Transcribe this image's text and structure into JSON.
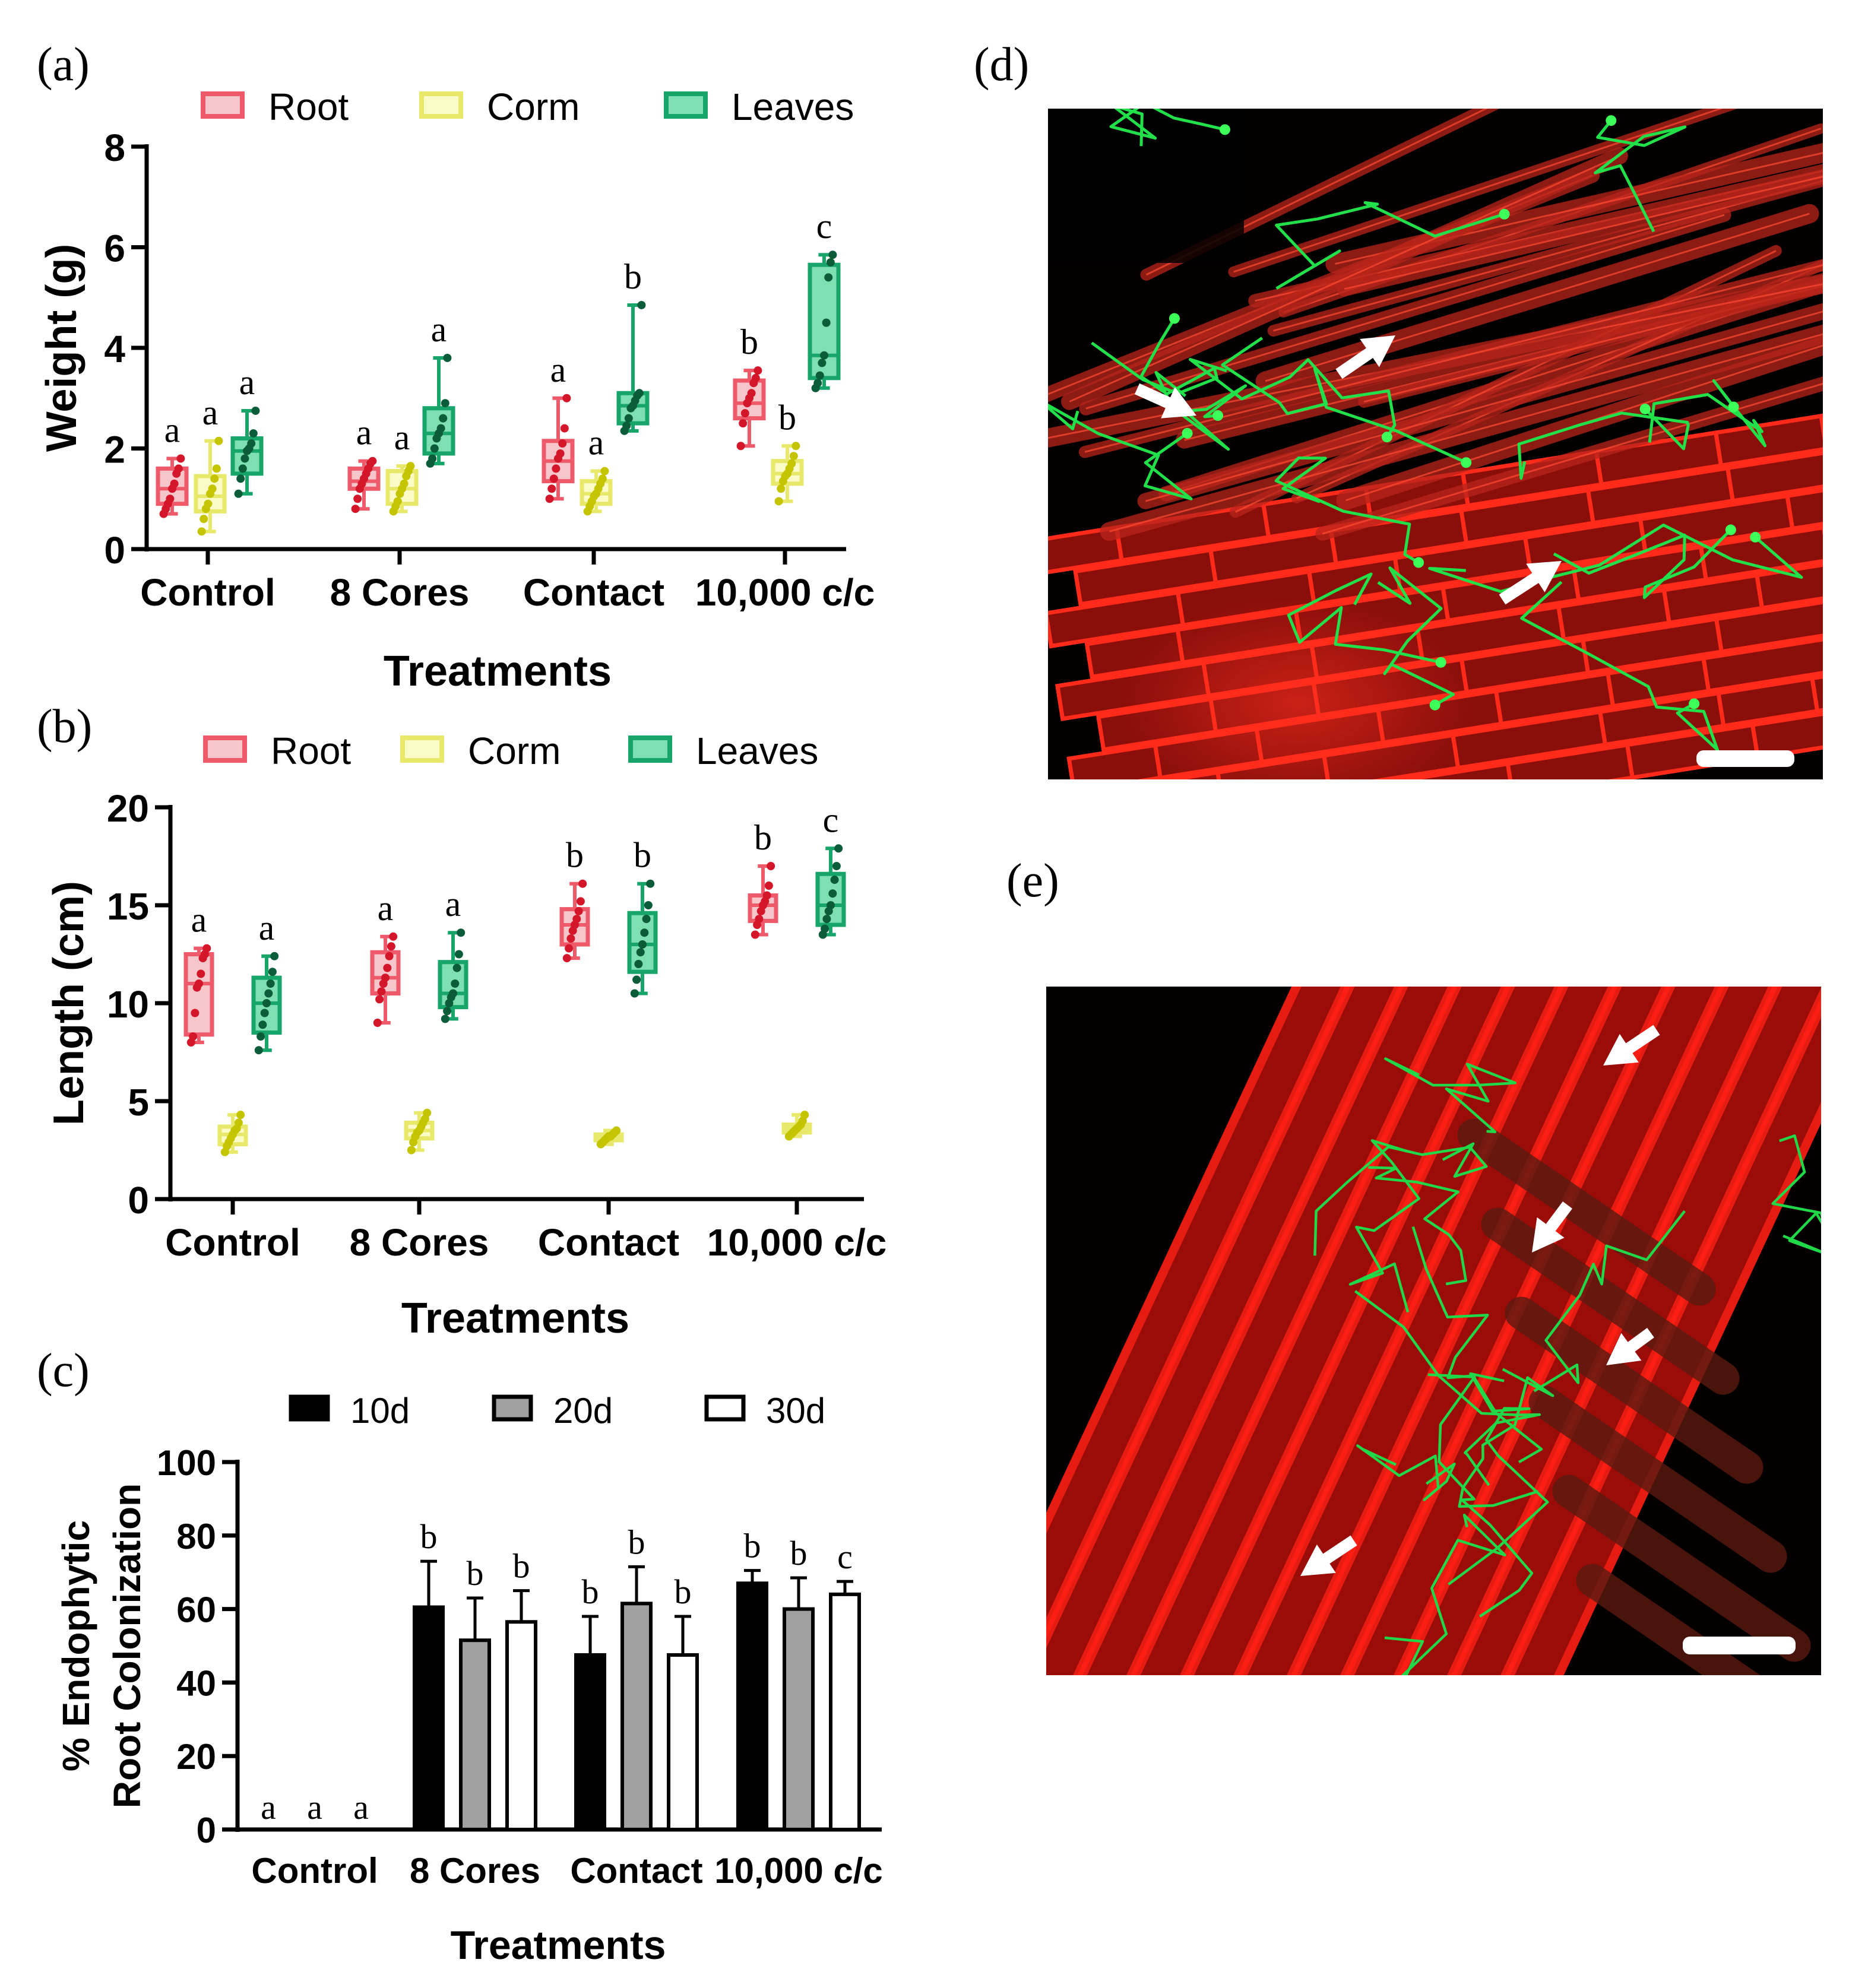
{
  "panels": {
    "a": "(a)",
    "b": "(b)",
    "c": "(c)",
    "d": "(d)",
    "e": "(e)"
  },
  "colors": {
    "root_edge": "#ee5a6a",
    "root_fill": "#f7c6cb",
    "root_dot": "#d4162a",
    "corm_edge": "#e8e86a",
    "corm_fill": "#fbfbc8",
    "corm_dot": "#c4c400",
    "leaves_edge": "#17a56a",
    "leaves_fill": "#7ee0b0",
    "leaves_dot": "#0b5c39",
    "bar_10d": "#000000",
    "bar_20d": "#a0a0a0",
    "bar_30d": "#ffffff"
  },
  "chart_data": [
    {
      "id": "a",
      "type": "box",
      "ylabel": "Weight (g)",
      "xlabel": "Treatments",
      "categories": [
        "Control",
        "8 Cores",
        "Contact",
        "10,000 c/c"
      ],
      "yticks": [
        "0",
        "2",
        "4",
        "6",
        "8"
      ],
      "ylim": [
        0,
        8
      ],
      "legend": [
        "Root",
        "Corm",
        "Leaves"
      ],
      "series": [
        {
          "name": "Root",
          "boxes": [
            {
              "min": 0.7,
              "q1": 0.9,
              "median": 1.2,
              "q3": 1.6,
              "max": 1.8,
              "sig": "a",
              "points": [
                0.7,
                0.8,
                0.9,
                1.0,
                1.2,
                1.3,
                1.5,
                1.6,
                1.8
              ]
            },
            {
              "min": 0.8,
              "q1": 1.2,
              "median": 1.35,
              "q3": 1.6,
              "max": 1.75,
              "sig": "a",
              "points": [
                0.8,
                1.0,
                1.2,
                1.3,
                1.4,
                1.5,
                1.6,
                1.7,
                1.75
              ]
            },
            {
              "min": 1.0,
              "q1": 1.35,
              "median": 1.75,
              "q3": 2.15,
              "max": 3.0,
              "sig": "a",
              "points": [
                1.0,
                1.2,
                1.4,
                1.6,
                1.8,
                1.9,
                2.1,
                2.4,
                3.0
              ]
            },
            {
              "min": 2.05,
              "q1": 2.6,
              "median": 2.9,
              "q3": 3.35,
              "max": 3.55,
              "sig": "b",
              "points": [
                2.05,
                2.5,
                2.7,
                2.9,
                3.0,
                3.1,
                3.3,
                3.4,
                3.55
              ]
            }
          ]
        },
        {
          "name": "Corm",
          "boxes": [
            {
              "min": 0.35,
              "q1": 0.75,
              "median": 1.05,
              "q3": 1.45,
              "max": 2.15,
              "sig": "a",
              "points": [
                0.35,
                0.6,
                0.8,
                0.9,
                1.1,
                1.2,
                1.4,
                1.6,
                2.15
              ]
            },
            {
              "min": 0.75,
              "q1": 0.9,
              "median": 1.2,
              "q3": 1.55,
              "max": 1.65,
              "sig": "a",
              "points": [
                0.75,
                0.85,
                0.95,
                1.1,
                1.2,
                1.3,
                1.45,
                1.55,
                1.65
              ]
            },
            {
              "min": 0.75,
              "q1": 0.9,
              "median": 1.1,
              "q3": 1.35,
              "max": 1.55,
              "sig": "a",
              "points": [
                0.75,
                0.85,
                0.95,
                1.05,
                1.1,
                1.2,
                1.3,
                1.4,
                1.55
              ]
            },
            {
              "min": 0.95,
              "q1": 1.3,
              "median": 1.5,
              "q3": 1.75,
              "max": 2.05,
              "sig": "b",
              "points": [
                0.95,
                1.2,
                1.35,
                1.45,
                1.5,
                1.6,
                1.7,
                1.85,
                2.05
              ]
            }
          ]
        },
        {
          "name": "Leaves",
          "boxes": [
            {
              "min": 1.1,
              "q1": 1.5,
              "median": 1.95,
              "q3": 2.2,
              "max": 2.75,
              "sig": "a",
              "points": [
                1.1,
                1.4,
                1.6,
                1.8,
                1.95,
                2.0,
                2.1,
                2.3,
                2.75
              ]
            },
            {
              "min": 1.7,
              "q1": 1.9,
              "median": 2.3,
              "q3": 2.8,
              "max": 3.8,
              "sig": "a",
              "points": [
                1.7,
                1.8,
                2.0,
                2.2,
                2.3,
                2.4,
                2.6,
                2.9,
                3.8
              ]
            },
            {
              "min": 2.35,
              "q1": 2.5,
              "median": 2.85,
              "q3": 3.1,
              "max": 4.85,
              "sig": "b",
              "points": [
                2.35,
                2.45,
                2.6,
                2.8,
                2.85,
                2.95,
                3.05,
                3.1,
                4.85
              ]
            },
            {
              "min": 3.2,
              "q1": 3.4,
              "median": 3.85,
              "q3": 5.65,
              "max": 5.85,
              "sig": "c",
              "points": [
                3.2,
                3.3,
                3.45,
                3.7,
                3.85,
                4.5,
                5.4,
                5.7,
                5.85
              ]
            }
          ]
        }
      ]
    },
    {
      "id": "b",
      "type": "box",
      "ylabel": "Length (cm)",
      "xlabel": "Treatments",
      "categories": [
        "Control",
        "8 Cores",
        "Contact",
        "10,000 c/c"
      ],
      "yticks": [
        "0",
        "5",
        "10",
        "15",
        "20"
      ],
      "ylim": [
        0,
        20
      ],
      "legend": [
        "Root",
        "Corm",
        "Leaves"
      ],
      "series": [
        {
          "name": "Root",
          "boxes": [
            {
              "min": 8.0,
              "q1": 8.4,
              "median": 11.0,
              "q3": 12.5,
              "max": 12.8,
              "sig": "a",
              "points": [
                8.0,
                8.3,
                9.5,
                10.8,
                11.0,
                11.5,
                12.3,
                12.5,
                12.8
              ]
            },
            {
              "min": 9.0,
              "q1": 10.5,
              "median": 11.3,
              "q3": 12.6,
              "max": 13.4,
              "sig": "a",
              "points": [
                9.0,
                10.2,
                10.6,
                11.0,
                11.3,
                11.8,
                12.4,
                12.9,
                13.4
              ]
            },
            {
              "min": 12.3,
              "q1": 13.0,
              "median": 14.0,
              "q3": 14.8,
              "max": 16.1,
              "sig": "b",
              "points": [
                12.3,
                12.8,
                13.3,
                13.7,
                14.0,
                14.3,
                14.7,
                15.2,
                16.1
              ]
            },
            {
              "min": 13.5,
              "q1": 14.2,
              "median": 15.0,
              "q3": 15.5,
              "max": 17.0,
              "sig": "b",
              "points": [
                13.5,
                14.0,
                14.3,
                14.7,
                15.0,
                15.2,
                15.5,
                16.0,
                17.0
              ]
            }
          ]
        },
        {
          "name": "Corm",
          "boxes": [
            {
              "min": 2.4,
              "q1": 2.8,
              "median": 3.3,
              "q3": 3.7,
              "max": 4.3,
              "sig": "",
              "points": [
                2.4,
                2.7,
                2.9,
                3.1,
                3.3,
                3.5,
                3.6,
                3.9,
                4.3
              ]
            },
            {
              "min": 2.5,
              "q1": 3.1,
              "median": 3.5,
              "q3": 3.9,
              "max": 4.4,
              "sig": "",
              "points": [
                2.5,
                2.9,
                3.2,
                3.4,
                3.5,
                3.7,
                3.9,
                4.1,
                4.4
              ]
            },
            {
              "min": 2.8,
              "q1": 3.0,
              "median": 3.2,
              "q3": 3.3,
              "max": 3.5,
              "sig": "",
              "points": [
                2.8,
                2.9,
                3.0,
                3.1,
                3.2,
                3.2,
                3.3,
                3.4,
                3.5
              ]
            },
            {
              "min": 3.2,
              "q1": 3.4,
              "median": 3.6,
              "q3": 3.8,
              "max": 4.3,
              "sig": "",
              "points": [
                3.2,
                3.3,
                3.4,
                3.5,
                3.6,
                3.7,
                3.8,
                4.0,
                4.3
              ]
            }
          ]
        },
        {
          "name": "Leaves",
          "boxes": [
            {
              "min": 7.6,
              "q1": 8.5,
              "median": 10.0,
              "q3": 11.3,
              "max": 12.4,
              "sig": "a",
              "points": [
                7.6,
                8.3,
                8.9,
                9.5,
                10.0,
                10.5,
                11.0,
                11.6,
                12.4
              ]
            },
            {
              "min": 9.2,
              "q1": 9.8,
              "median": 10.5,
              "q3": 12.1,
              "max": 13.6,
              "sig": "a",
              "points": [
                9.2,
                9.6,
                10.0,
                10.3,
                10.5,
                11.0,
                11.8,
                12.5,
                13.6
              ]
            },
            {
              "min": 10.5,
              "q1": 11.6,
              "median": 13.0,
              "q3": 14.6,
              "max": 16.1,
              "sig": "b",
              "points": [
                10.5,
                11.2,
                12.0,
                12.6,
                13.0,
                13.6,
                14.3,
                15.0,
                16.1
              ]
            },
            {
              "min": 13.5,
              "q1": 14.0,
              "median": 15.0,
              "q3": 16.6,
              "max": 17.9,
              "sig": "c",
              "points": [
                13.5,
                13.8,
                14.3,
                14.7,
                15.0,
                15.6,
                16.3,
                17.0,
                17.9
              ]
            }
          ]
        }
      ]
    },
    {
      "id": "c",
      "type": "bar",
      "ylabel": "% Endophytic Root Colonization",
      "xlabel": "Treatments",
      "categories": [
        "Control",
        "8 Cores",
        "Contact",
        "10,000 c/c"
      ],
      "yticks": [
        "0",
        "20",
        "40",
        "60",
        "80",
        "100"
      ],
      "ylim": [
        0,
        100
      ],
      "legend": [
        "10d",
        "20d",
        "30d"
      ],
      "series": [
        {
          "name": "10d",
          "values": [
            0,
            60.5,
            47.5,
            67
          ],
          "errors": [
            0,
            12.5,
            10.5,
            3.5
          ],
          "sig": [
            "a",
            "b",
            "b",
            "b"
          ]
        },
        {
          "name": "20d",
          "values": [
            0,
            51.5,
            61.5,
            60
          ],
          "errors": [
            0,
            11.5,
            10,
            8.5
          ],
          "sig": [
            "a",
            "b",
            "b",
            "b"
          ]
        },
        {
          "name": "30d",
          "values": [
            0,
            56.5,
            47.5,
            64
          ],
          "errors": [
            0,
            8.5,
            10.5,
            3.5
          ],
          "sig": [
            "a",
            "b",
            "b",
            "c"
          ]
        }
      ]
    }
  ]
}
